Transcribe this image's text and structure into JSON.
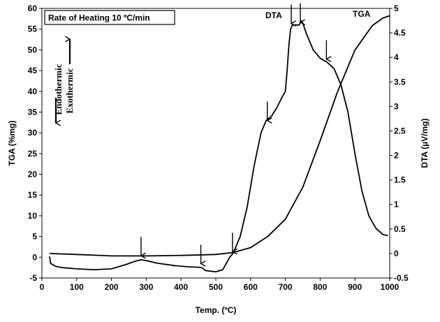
{
  "chart_data": {
    "type": "line",
    "title": "Rate of Heating 10 ºC/min",
    "xlabel": "Temp. (ºC)",
    "ylabel_left": "TGA (%mg)",
    "ylabel_right": "DTA (µV/mg)",
    "xlim": [
      0,
      1000
    ],
    "ylim_left": [
      -5,
      60
    ],
    "ylim_right": [
      -0.5,
      5
    ],
    "x_ticks": [
      0,
      100,
      200,
      300,
      400,
      500,
      600,
      700,
      800,
      900,
      1000
    ],
    "y_left_ticks": [
      -5,
      0,
      5,
      10,
      15,
      20,
      25,
      30,
      35,
      40,
      45,
      50,
      55,
      60
    ],
    "y_right_ticks": [
      -0.5,
      0,
      0.5,
      1,
      1.5,
      2,
      2.5,
      3,
      3.5,
      4,
      4.5,
      5
    ],
    "y_right_tick_labels": [
      "-0.5",
      "0",
      "0.5",
      "1",
      "1.5",
      "2",
      "2.5",
      "3",
      "3.5",
      "4",
      "4.5",
      "5"
    ],
    "grid": false,
    "series": [
      {
        "name": "DTA",
        "axis": "left",
        "x": [
          22,
          25,
          40,
          60,
          100,
          150,
          200,
          240,
          270,
          285,
          300,
          330,
          380,
          420,
          450,
          460,
          470,
          500,
          520,
          540,
          550,
          570,
          590,
          610,
          630,
          645,
          660,
          675,
          690,
          700,
          705,
          710,
          715,
          720,
          740,
          745,
          750,
          760,
          780,
          800,
          820,
          840,
          860,
          880,
          900,
          920,
          940,
          960,
          980,
          995
        ],
        "y": [
          0.2,
          -1.5,
          -2.2,
          -2.5,
          -2.8,
          -3.0,
          -2.8,
          -1.8,
          -0.9,
          -0.6,
          -0.8,
          -1.4,
          -2.0,
          -2.3,
          -2.4,
          -2.5,
          -3.2,
          -3.5,
          -3.0,
          0.0,
          1.0,
          5.0,
          12.0,
          22.0,
          30.0,
          33.0,
          34.0,
          36.0,
          38.5,
          40.0,
          45.0,
          51.0,
          55.0,
          56.0,
          56.0,
          57.0,
          56.5,
          54.0,
          50.0,
          48.0,
          47.0,
          45.5,
          41.5,
          35.0,
          25.0,
          16.0,
          10.0,
          7.0,
          5.5,
          5.2
        ]
      },
      {
        "name": "TGA",
        "axis": "right",
        "x": [
          22,
          100,
          200,
          300,
          400,
          500,
          550,
          600,
          650,
          700,
          750,
          800,
          850,
          900,
          950,
          980,
          1000
        ],
        "y": [
          0.0,
          -0.02,
          -0.05,
          -0.05,
          -0.04,
          -0.02,
          0.02,
          0.12,
          0.35,
          0.7,
          1.35,
          2.3,
          3.3,
          4.15,
          4.65,
          4.8,
          4.85
        ]
      }
    ],
    "annotations": {
      "dta_label": "DTA",
      "tga_label": "TGA",
      "endothermic": "Endothermic",
      "exothermic": "Exothermic",
      "arrow_points": [
        {
          "x": 285,
          "y": 0.2
        },
        {
          "x": 457,
          "y": -1.7
        },
        {
          "x": 548,
          "y": 1.2
        },
        {
          "x": 648,
          "y": 32.8
        },
        {
          "x": 717,
          "y": 56.2
        },
        {
          "x": 743,
          "y": 56.5
        },
        {
          "x": 818,
          "y": 47.6
        }
      ]
    }
  }
}
